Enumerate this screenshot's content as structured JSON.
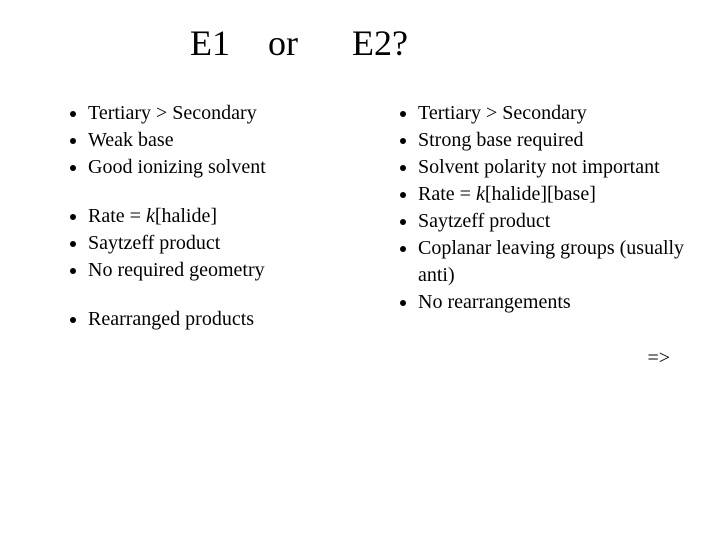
{
  "title": {
    "e1": "E1",
    "or": "or",
    "e2": "E2?"
  },
  "left": {
    "g1": [
      "Tertiary > Secondary",
      "Weak base",
      " Good ionizing solvent"
    ],
    "g2_0_pre": "Rate = ",
    "g2_0_k": "k",
    "g2_0_post": "[halide]",
    "g2_1": "Saytzeff product",
    "g2_2": "No required geometry",
    "g3_0": "Rearranged products"
  },
  "right": {
    "items_0": "Tertiary > Secondary",
    "items_1": "Strong base required",
    "items_2": "Solvent polarity not important",
    "items_3_pre": "Rate = ",
    "items_3_k": "k",
    "items_3_post": "[halide][base]",
    "items_4": "Saytzeff product",
    "items_5": "Coplanar leaving groups (usually anti)",
    "items_6": "No rearrangements"
  },
  "arrow": "=>",
  "colors": {
    "background": "#ffffff",
    "text": "#000000"
  },
  "fonts": {
    "title_size_pt": 36,
    "body_size_pt": 20,
    "family": "Times New Roman"
  }
}
